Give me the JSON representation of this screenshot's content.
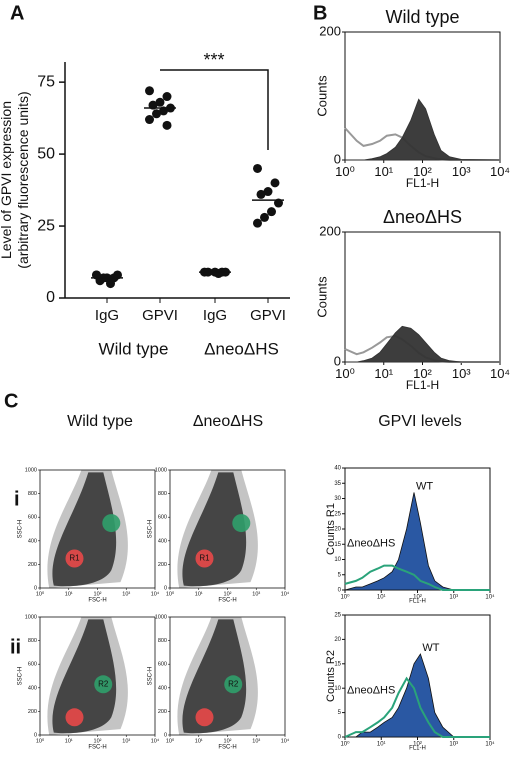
{
  "figure": {
    "panel_labels": [
      "A",
      "B",
      "C"
    ],
    "row_labels": [
      "i",
      "ii"
    ],
    "column_titles": [
      "Wild type",
      "ΔneoΔHS",
      "GPVI levels"
    ]
  },
  "chart_data": [
    {
      "type": "strip",
      "ylabel": [
        "Level of GPVI expression",
        "(arbitrary fluorescence units)"
      ],
      "categories": [
        "IgG",
        "GPVI",
        "IgG",
        "GPVI"
      ],
      "groups": [
        "Wild type",
        "ΔneoΔHS"
      ],
      "values": [
        [
          8,
          7,
          7,
          6,
          8,
          5,
          7,
          8
        ],
        [
          72,
          70,
          68,
          67,
          66,
          65,
          64,
          62,
          60
        ],
        [
          9,
          9,
          9,
          9,
          9,
          8.5
        ],
        [
          45,
          40,
          37,
          36,
          33,
          30,
          28,
          26
        ]
      ],
      "medians": [
        7,
        66,
        9,
        34
      ],
      "annotation": "***",
      "ylim": [
        0,
        82
      ],
      "yticks": [
        0,
        25,
        50,
        75
      ],
      "color": "#111"
    },
    {
      "type": "flow-histogram",
      "title": "Wild type",
      "xlabel": "FL1-H",
      "ylabel": "Counts",
      "log_x": true,
      "x": [
        1,
        2,
        3,
        5,
        8,
        12,
        20,
        30,
        50,
        80,
        120,
        200,
        300,
        500,
        1000,
        10000
      ],
      "xlim": [
        1,
        10000
      ],
      "xticks": [
        {
          "value": 1,
          "label": "10⁰"
        },
        {
          "value": 10,
          "label": "10¹"
        },
        {
          "value": 100,
          "label": "10²"
        },
        {
          "value": 1000,
          "label": "10³"
        },
        {
          "value": 10000,
          "label": "10⁴"
        }
      ],
      "ylim": [
        0,
        200
      ],
      "yticks": [
        0,
        200
      ],
      "series": [
        {
          "color": "#999999",
          "fill": false,
          "values": [
            50,
            30,
            22,
            25,
            30,
            38,
            40,
            35,
            22,
            12,
            6,
            3,
            1,
            0,
            0,
            0
          ]
        },
        {
          "color": "#333333",
          "fill": true,
          "values": [
            0,
            0,
            0,
            2,
            5,
            10,
            20,
            35,
            62,
            95,
            80,
            40,
            15,
            5,
            1,
            0
          ]
        }
      ]
    },
    {
      "type": "flow-histogram",
      "title": "ΔneoΔHS",
      "xlabel": "FL1-H",
      "ylabel": "Counts",
      "log_x": true,
      "x": [
        1,
        2,
        3,
        5,
        8,
        12,
        20,
        30,
        50,
        80,
        120,
        200,
        300,
        500,
        1000,
        10000
      ],
      "xlim": [
        1,
        10000
      ],
      "xticks": [
        {
          "value": 1,
          "label": "10⁰"
        },
        {
          "value": 10,
          "label": "10¹"
        },
        {
          "value": 100,
          "label": "10²"
        },
        {
          "value": 1000,
          "label": "10³"
        },
        {
          "value": 10000,
          "label": "10⁴"
        }
      ],
      "ylim": [
        0,
        200
      ],
      "yticks": [
        0,
        200
      ],
      "series": [
        {
          "color": "#999999",
          "fill": false,
          "values": [
            20,
            12,
            15,
            22,
            30,
            38,
            40,
            35,
            25,
            14,
            7,
            3,
            1,
            0,
            0,
            0
          ]
        },
        {
          "color": "#333333",
          "fill": true,
          "values": [
            0,
            0,
            2,
            6,
            15,
            28,
            45,
            55,
            52,
            42,
            30,
            15,
            6,
            2,
            0,
            0
          ]
        }
      ]
    },
    {
      "type": "density",
      "xlabel": "FSC-H",
      "ylabel": "SSC-H",
      "gate_label": "R1",
      "gate_color": "#e84848",
      "xlim": [
        1,
        10000
      ],
      "xticks": [
        {
          "value": 1,
          "label": "10⁰"
        },
        {
          "value": 10,
          "label": "10¹"
        },
        {
          "value": 100,
          "label": "10²"
        },
        {
          "value": 1000,
          "label": "10³"
        },
        {
          "value": 10000,
          "label": "10⁴"
        }
      ],
      "ylim": [
        0,
        1000
      ],
      "yticks": [
        0,
        200,
        400,
        600,
        800,
        1000
      ]
    },
    {
      "type": "density",
      "xlabel": "FSC-H",
      "ylabel": "SSC-H",
      "gate_label": "R1",
      "gate_color": "#e84848",
      "xlim": [
        1,
        10000
      ],
      "xticks": [
        {
          "value": 1,
          "label": "10⁰"
        },
        {
          "value": 10,
          "label": "10¹"
        },
        {
          "value": 100,
          "label": "10²"
        },
        {
          "value": 1000,
          "label": "10³"
        },
        {
          "value": 10000,
          "label": "10⁴"
        }
      ],
      "ylim": [
        0,
        1000
      ],
      "yticks": [
        0,
        200,
        400,
        600,
        800,
        1000
      ]
    },
    {
      "type": "flow-histogram",
      "xlabel": "FL1-H",
      "ylabel": "Counts R1",
      "log_x": true,
      "x": [
        1,
        2,
        3,
        5,
        8,
        12,
        20,
        30,
        50,
        80,
        120,
        200,
        300,
        500,
        1000,
        10000
      ],
      "xlim": [
        1,
        10000
      ],
      "xticks": [
        {
          "value": 1,
          "label": "10⁰"
        },
        {
          "value": 10,
          "label": "10¹"
        },
        {
          "value": 100,
          "label": "10²"
        },
        {
          "value": 1000,
          "label": "10³"
        },
        {
          "value": 10000,
          "label": "10⁴"
        }
      ],
      "ylim": [
        0,
        40
      ],
      "yticks": [
        0,
        5,
        10,
        15,
        20,
        25,
        30,
        35,
        40
      ],
      "series": [
        {
          "name": "WT",
          "color": "#1f4f9e",
          "fill": true,
          "values": [
            0,
            1,
            1,
            2,
            3,
            4,
            6,
            10,
            20,
            32,
            22,
            8,
            3,
            1,
            0,
            0
          ]
        },
        {
          "name": "ΔneoΔHS",
          "color": "#2aa37a",
          "fill": false,
          "values": [
            2,
            3,
            4,
            6,
            7,
            8,
            8,
            7,
            6,
            5,
            3,
            2,
            1,
            0,
            0,
            0
          ]
        }
      ]
    },
    {
      "type": "density",
      "xlabel": "FSC-H",
      "ylabel": "SSC-H",
      "gate_label": "R2",
      "gate_color": "#2f9e6a",
      "xlim": [
        1,
        10000
      ],
      "xticks": [
        {
          "value": 1,
          "label": "10⁰"
        },
        {
          "value": 10,
          "label": "10¹"
        },
        {
          "value": 100,
          "label": "10²"
        },
        {
          "value": 1000,
          "label": "10³"
        },
        {
          "value": 10000,
          "label": "10⁴"
        }
      ],
      "ylim": [
        0,
        1000
      ],
      "yticks": [
        0,
        200,
        400,
        600,
        800,
        1000
      ]
    },
    {
      "type": "density",
      "xlabel": "FSC-H",
      "ylabel": "SSC-H",
      "gate_label": "R2",
      "gate_color": "#2f9e6a",
      "xlim": [
        1,
        10000
      ],
      "xticks": [
        {
          "value": 1,
          "label": "10⁰"
        },
        {
          "value": 10,
          "label": "10¹"
        },
        {
          "value": 100,
          "label": "10²"
        },
        {
          "value": 1000,
          "label": "10³"
        },
        {
          "value": 10000,
          "label": "10⁴"
        }
      ],
      "ylim": [
        0,
        1000
      ],
      "yticks": [
        0,
        200,
        400,
        600,
        800,
        1000
      ]
    },
    {
      "type": "flow-histogram",
      "xlabel": "FL1-H",
      "ylabel": "Counts R2",
      "log_x": true,
      "x": [
        1,
        2,
        3,
        5,
        8,
        12,
        20,
        30,
        50,
        80,
        120,
        200,
        300,
        500,
        1000,
        10000
      ],
      "xlim": [
        1,
        10000
      ],
      "xticks": [
        {
          "value": 1,
          "label": "10⁰"
        },
        {
          "value": 10,
          "label": "10¹"
        },
        {
          "value": 100,
          "label": "10²"
        },
        {
          "value": 1000,
          "label": "10³"
        },
        {
          "value": 10000,
          "label": "10⁴"
        }
      ],
      "ylim": [
        0,
        25
      ],
      "yticks": [
        0,
        5,
        10,
        15,
        20,
        25
      ],
      "series": [
        {
          "name": "WT",
          "color": "#1f4f9e",
          "fill": true,
          "values": [
            0,
            0,
            1,
            1,
            2,
            3,
            4,
            6,
            10,
            15,
            17,
            12,
            5,
            2,
            0,
            0
          ]
        },
        {
          "name": "ΔneoΔHS",
          "color": "#2aa37a",
          "fill": false,
          "values": [
            0,
            1,
            1,
            2,
            3,
            4,
            6,
            9,
            12,
            10,
            6,
            3,
            1,
            0,
            0,
            0
          ]
        }
      ]
    }
  ]
}
